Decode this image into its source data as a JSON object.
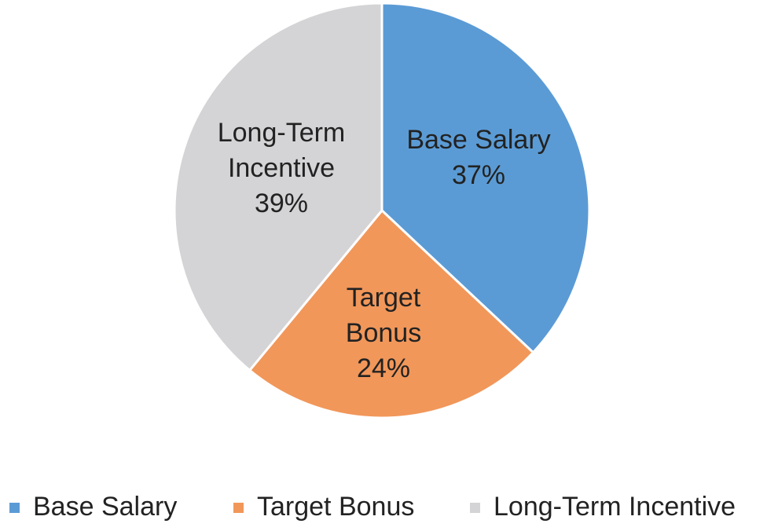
{
  "chart_data": {
    "type": "pie",
    "categories": [
      "Base Salary",
      "Target Bonus",
      "Long-Term Incentive"
    ],
    "values": [
      37,
      24,
      39
    ],
    "value_labels": [
      "37%",
      "24%",
      "39%"
    ],
    "colors": [
      "#5b9bd5",
      "#f1975a",
      "#d4d4d6"
    ],
    "legend": "bottom"
  }
}
